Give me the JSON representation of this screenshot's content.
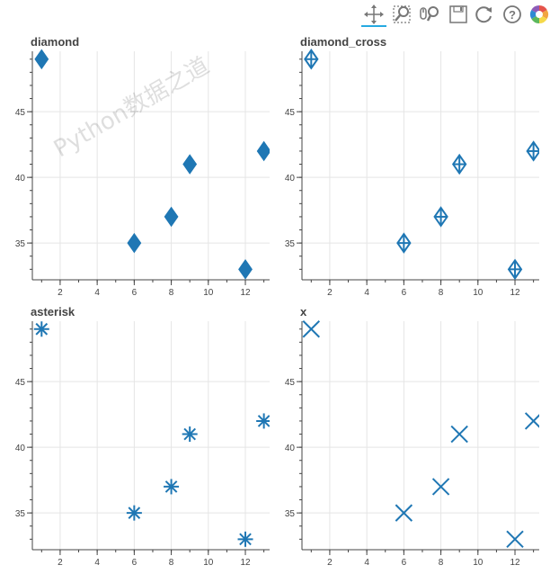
{
  "toolbar": {
    "tools": [
      {
        "name": "pan-tool",
        "icon": "move-arrows-icon",
        "active": true
      },
      {
        "name": "box-zoom-tool",
        "icon": "box-zoom-icon",
        "active": false
      },
      {
        "name": "wheel-zoom-tool",
        "icon": "wheel-zoom-icon",
        "active": false
      },
      {
        "name": "save-tool",
        "icon": "save-icon",
        "active": false
      },
      {
        "name": "reset-tool",
        "icon": "reset-icon",
        "active": false
      },
      {
        "name": "help-tool",
        "icon": "help-icon",
        "active": false
      },
      {
        "name": "bokeh-logo",
        "icon": "bokeh-logo-icon",
        "active": false
      }
    ]
  },
  "watermark": "Python数据之道",
  "colors": {
    "marker": "#1f77b4",
    "fill": "#1f77b4",
    "grid": "#e5e5e5",
    "axis": "#444444"
  },
  "chart_data": [
    {
      "type": "scatter",
      "title": "diamond",
      "marker": "diamond",
      "x": [
        1,
        6,
        8,
        9,
        12,
        13
      ],
      "y": [
        49,
        35,
        37,
        41,
        33,
        42
      ],
      "xticks": [
        "2",
        "4",
        "6",
        "8",
        "10",
        "12"
      ],
      "yticks": [
        "35",
        "40",
        "45"
      ],
      "xlim": [
        0.5,
        13.6
      ],
      "ylim": [
        32.2,
        49.6
      ],
      "grid": true
    },
    {
      "type": "scatter",
      "title": "diamond_cross",
      "marker": "diamond_cross",
      "x": [
        1,
        6,
        8,
        9,
        12,
        13
      ],
      "y": [
        49,
        35,
        37,
        41,
        33,
        42
      ],
      "xticks": [
        "2",
        "4",
        "6",
        "8",
        "10",
        "12"
      ],
      "yticks": [
        "35",
        "40",
        "45"
      ],
      "xlim": [
        0.5,
        13.6
      ],
      "ylim": [
        32.2,
        49.6
      ],
      "grid": true
    },
    {
      "type": "scatter",
      "title": "asterisk",
      "marker": "asterisk",
      "x": [
        1,
        6,
        8,
        9,
        12,
        13
      ],
      "y": [
        49,
        35,
        37,
        41,
        33,
        42
      ],
      "xticks": [
        "2",
        "4",
        "6",
        "8",
        "10",
        "12"
      ],
      "yticks": [
        "35",
        "40",
        "45"
      ],
      "xlim": [
        0.5,
        13.6
      ],
      "ylim": [
        32.2,
        49.6
      ],
      "grid": true
    },
    {
      "type": "scatter",
      "title": "x",
      "marker": "x",
      "x": [
        1,
        6,
        8,
        9,
        12,
        13
      ],
      "y": [
        49,
        35,
        37,
        41,
        33,
        42
      ],
      "xticks": [
        "2",
        "4",
        "6",
        "8",
        "10",
        "12"
      ],
      "yticks": [
        "35",
        "40",
        "45"
      ],
      "xlim": [
        0.5,
        13.6
      ],
      "ylim": [
        32.2,
        49.6
      ],
      "grid": true
    }
  ]
}
